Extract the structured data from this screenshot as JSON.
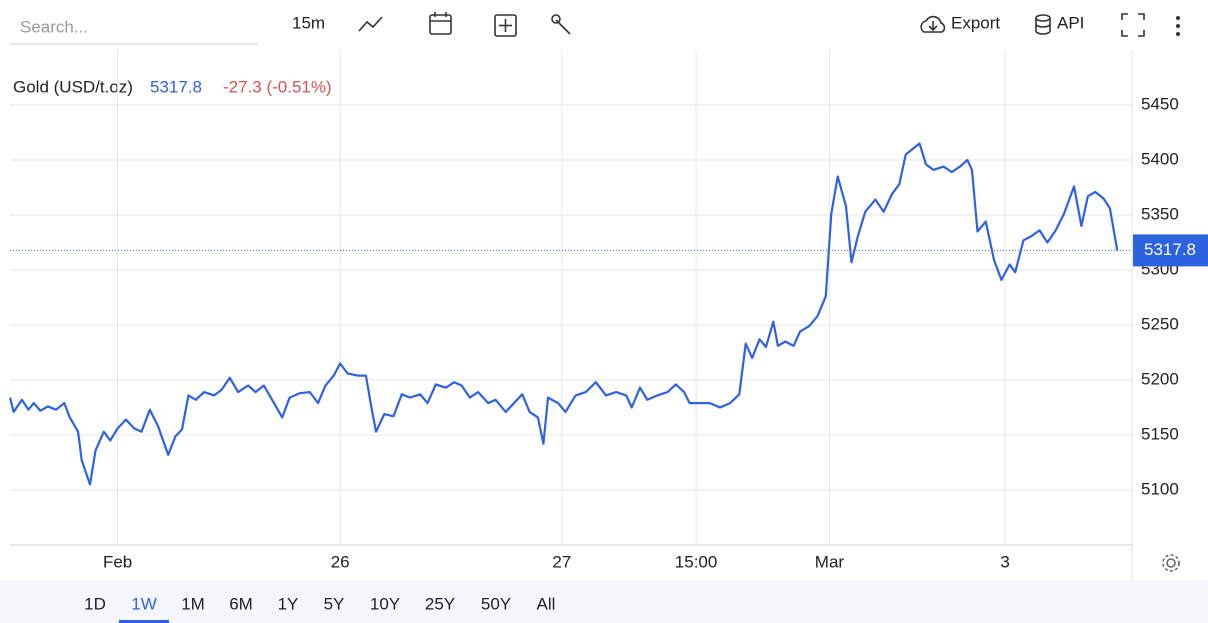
{
  "toolbar": {
    "search_placeholder": "Search...",
    "interval": "15m",
    "export": "Export",
    "api": "API"
  },
  "chart_data": {
    "type": "line",
    "title": "Gold (USD/t.oz)",
    "last_value": 5317.8,
    "change_label": "-27.3 (-0.51%)",
    "color": "#2f62e0",
    "grid": true,
    "x": [
      0,
      0.4,
      1.3,
      2,
      2.6,
      3.3,
      4.1,
      5,
      5.9,
      6.5,
      7.4,
      7.8,
      8.7,
      9.3,
      10.2,
      10.9,
      11.7,
      12.6,
      13.5,
      14.3,
      15.2,
      16.1,
      17.2,
      18,
      18.7,
      19.4,
      20.2,
      21.1,
      22.2,
      23,
      23.9,
      24.8,
      25.9,
      26.7,
      27.6,
      28.5,
      29.6,
      30.4,
      31.5,
      32.6,
      33.5,
      34.3,
      35.2,
      35.9,
      36.7,
      37.8,
      38.7,
      39.3,
      39.8,
      40.7,
      41.7,
      42.6,
      43.5,
      44.6,
      45.4,
      46.3,
      47.4,
      48.3,
      49.1,
      50,
      50.9,
      52,
      52.8,
      53.9,
      54.8,
      55.7,
      56.5,
      57.4,
      58,
      58.5,
      59.6,
      60.4,
      61.5,
      62.6,
      63.7,
      64.8,
      65.9,
      67,
      67.6,
      68.5,
      69.3,
      70.4,
      71.5,
      72.4,
      73.3,
      73.9,
      75,
      76.1,
      77.2,
      78.3,
      79.3,
      80,
      80.7,
      81.5,
      82.2,
      83,
      83.5,
      84.3,
      85.2,
      85.9,
      86.9,
      87.8,
      88.7,
      89.3,
      90,
      90.9,
      91.5,
      92.2,
      93,
      94.1,
      95,
      95.9,
      96.7,
      97.4,
      98.3,
      98.9,
      99.6,
      100.4,
      101.5,
      102.4,
      103.3,
      104.1,
      104.6,
      105.2,
      106.1,
      107,
      107.8,
      108.7,
      109.3,
      110.2,
      111.1,
      111.95,
      112.8,
      113.7,
      114.6,
      115.7,
      116.5,
      117.2,
      118,
      118.9,
      119.6,
      120.4
    ],
    "values": [
      5184,
      5171,
      5182,
      5173,
      5179,
      5172,
      5176,
      5173,
      5179,
      5166,
      5153,
      5127,
      5105,
      5136,
      5153,
      5145,
      5156,
      5164,
      5156,
      5153,
      5173,
      5158,
      5132,
      5149,
      5155,
      5186,
      5182,
      5189,
      5186,
      5191,
      5202,
      5189,
      5195,
      5189,
      5195,
      5182,
      5166,
      5184,
      5188,
      5189,
      5179,
      5195,
      5204,
      5215,
      5206,
      5204,
      5204,
      5175,
      5153,
      5169,
      5167,
      5187,
      5184,
      5187,
      5179,
      5196,
      5193,
      5198,
      5195,
      5184,
      5189,
      5179,
      5182,
      5171,
      5179,
      5187,
      5171,
      5166,
      5142,
      5184,
      5179,
      5171,
      5186,
      5189,
      5198,
      5186,
      5189,
      5186,
      5175,
      5193,
      5182,
      5186,
      5189,
      5196,
      5189,
      5179,
      5179,
      5179,
      5175,
      5179,
      5187,
      5233,
      5220,
      5237,
      5230,
      5253,
      5231,
      5235,
      5231,
      5244,
      5249,
      5258,
      5276,
      5351,
      5385,
      5358,
      5307,
      5331,
      5353,
      5364,
      5353,
      5369,
      5378,
      5405,
      5411,
      5415,
      5396,
      5391,
      5394,
      5389,
      5394,
      5400,
      5391,
      5335,
      5344,
      5309,
      5291,
      5305,
      5298,
      5327,
      5331,
      5336,
      5325,
      5336,
      5351,
      5376,
      5340,
      5367,
      5371,
      5365,
      5356,
      5317.8
    ],
    "xlim": [
      0,
      122
    ],
    "xticks": [
      {
        "value": 11.7,
        "label": "Feb"
      },
      {
        "value": 35.9,
        "label": "26"
      },
      {
        "value": 60,
        "label": "27"
      },
      {
        "value": 74.6,
        "label": "15:00"
      },
      {
        "value": 89.1,
        "label": "Mar"
      },
      {
        "value": 108.2,
        "label": "3"
      }
    ],
    "ylim": [
      5050,
      5500
    ],
    "yticks": [
      5100,
      5150,
      5200,
      5250,
      5300,
      5350,
      5400,
      5450
    ]
  },
  "ranges": [
    "1D",
    "1W",
    "1M",
    "6M",
    "1Y",
    "5Y",
    "10Y",
    "25Y",
    "50Y",
    "All"
  ],
  "active_range": "1W"
}
